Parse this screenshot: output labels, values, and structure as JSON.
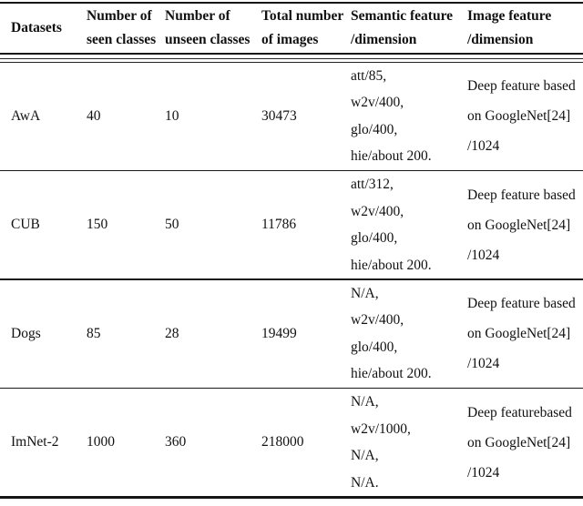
{
  "header": {
    "datasets_label": "Datasets",
    "cols": [
      {
        "l1": "Number of",
        "l2": "seen classes"
      },
      {
        "l1": "Number of",
        "l2": "unseen classes"
      },
      {
        "l1": "Total number",
        "l2": "of images"
      },
      {
        "l1": "Semantic feature",
        "l2": "/dimension"
      },
      {
        "l1": "Image feature",
        "l2": "/dimension"
      }
    ]
  },
  "rows": [
    {
      "dataset": "AwA",
      "seen": "40",
      "unseen": "10",
      "total": "30473",
      "semantic": [
        "att/85,",
        "w2v/400,",
        "glo/400,",
        "hie/about 200."
      ],
      "image": [
        "Deep feature based",
        "on GoogleNet[24]",
        "/1024"
      ]
    },
    {
      "dataset": "CUB",
      "seen": "150",
      "unseen": "50",
      "total": "11786",
      "semantic": [
        "att/312,",
        "w2v/400,",
        "glo/400,",
        "hie/about 200."
      ],
      "image": [
        "Deep feature based",
        "on GoogleNet[24]",
        "/1024"
      ]
    },
    {
      "dataset": "Dogs",
      "seen": "85",
      "unseen": "28",
      "total": "19499",
      "semantic": [
        "N/A,",
        "w2v/400,",
        "glo/400,",
        "hie/about 200."
      ],
      "image": [
        "Deep feature based",
        "on GoogleNet[24]",
        "/1024"
      ]
    },
    {
      "dataset": "ImNet-2",
      "seen": "1000",
      "unseen": "360",
      "total": "218000",
      "semantic": [
        "N/A,",
        "w2v/1000,",
        "N/A,",
        "N/A."
      ],
      "image": [
        "Deep featurebased",
        "on GoogleNet[24]",
        "/1024"
      ]
    }
  ],
  "colors": {
    "text": "#111111",
    "rule": "#151515",
    "background": "#ffffff"
  }
}
